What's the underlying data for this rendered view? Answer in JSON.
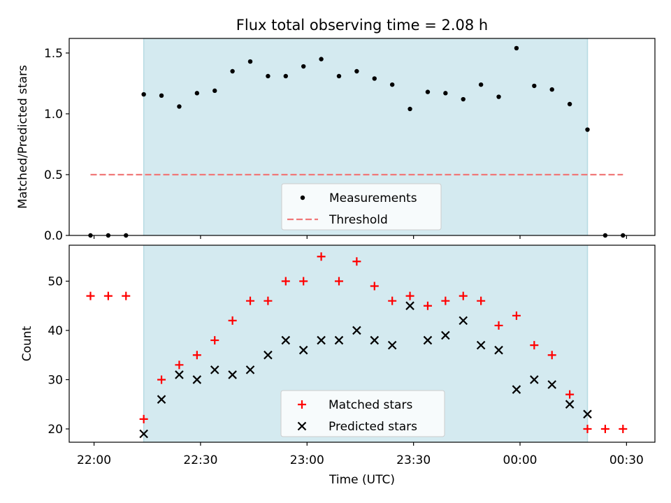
{
  "chart_data": {
    "type": "scatter",
    "title": "Flux total observing time = 2.08 h",
    "xlabel": "Time (UTC)",
    "x_units": "minutes after 22:00 UTC",
    "xlim": [
      -7,
      158
    ],
    "x_ticks": [
      {
        "t": 0,
        "label": "22:00"
      },
      {
        "t": 30,
        "label": "22:30"
      },
      {
        "t": 60,
        "label": "23:00"
      },
      {
        "t": 90,
        "label": "23:30"
      },
      {
        "t": 120,
        "label": "00:00"
      },
      {
        "t": 150,
        "label": "00:30"
      }
    ],
    "observing_window": [
      14,
      139
    ],
    "observing_window_color": "#d4eaf0",
    "times": [
      -1,
      4,
      9,
      14,
      19,
      24,
      29,
      34,
      39,
      44,
      49,
      54,
      59,
      64,
      69,
      74,
      79,
      84,
      89,
      94,
      99,
      104,
      109,
      114,
      119,
      124,
      129,
      134,
      139,
      144,
      149
    ],
    "panels": [
      {
        "ylabel": "Matched/Predicted stars",
        "ylim": [
          0,
          1.62
        ],
        "y_ticks": [
          0.0,
          0.5,
          1.0,
          1.5
        ],
        "y_tick_labels": [
          "0.0",
          "0.5",
          "1.0",
          "1.5"
        ],
        "series": [
          {
            "name": "Measurements",
            "marker": "dot",
            "color": "#000000",
            "values": [
              0,
              0,
              0,
              1.16,
              1.15,
              1.06,
              1.17,
              1.19,
              1.35,
              1.43,
              1.31,
              1.31,
              1.39,
              1.45,
              1.31,
              1.35,
              1.29,
              1.24,
              1.04,
              1.18,
              1.17,
              1.12,
              1.24,
              1.14,
              1.54,
              1.23,
              1.2,
              1.08,
              0.87,
              0,
              0
            ]
          }
        ],
        "threshold": {
          "name": "Threshold",
          "value": 0.5,
          "x_range": [
            -1,
            149
          ],
          "color": "#f07878"
        },
        "legend": {
          "position": "bottom-center",
          "entries": [
            "Measurements",
            "Threshold"
          ]
        }
      },
      {
        "ylabel": "Count",
        "ylim": [
          17.3,
          57.3
        ],
        "y_ticks": [
          20,
          30,
          40,
          50
        ],
        "y_tick_labels": [
          "20",
          "30",
          "40",
          "50"
        ],
        "series": [
          {
            "name": "Matched stars",
            "marker": "plus",
            "color": "#ff0000",
            "values": [
              47,
              47,
              47,
              22,
              30,
              33,
              35,
              38,
              42,
              46,
              46,
              50,
              50,
              55,
              50,
              54,
              49,
              46,
              47,
              45,
              46,
              47,
              46,
              41,
              43,
              37,
              35,
              27,
              20,
              20,
              20
            ]
          },
          {
            "name": "Predicted stars",
            "marker": "x",
            "color": "#000000",
            "times": [
              14,
              19,
              24,
              29,
              34,
              39,
              44,
              49,
              54,
              59,
              64,
              69,
              74,
              79,
              84,
              89,
              94,
              99,
              104,
              109,
              114,
              119,
              124,
              129,
              134,
              139
            ],
            "values": [
              19,
              26,
              31,
              30,
              32,
              31,
              32,
              35,
              38,
              36,
              38,
              38,
              40,
              38,
              37,
              45,
              38,
              39,
              42,
              37,
              36,
              28,
              30,
              29,
              25,
              23
            ]
          }
        ],
        "legend": {
          "position": "bottom-center",
          "entries": [
            "Matched stars",
            "Predicted stars"
          ]
        }
      }
    ]
  }
}
